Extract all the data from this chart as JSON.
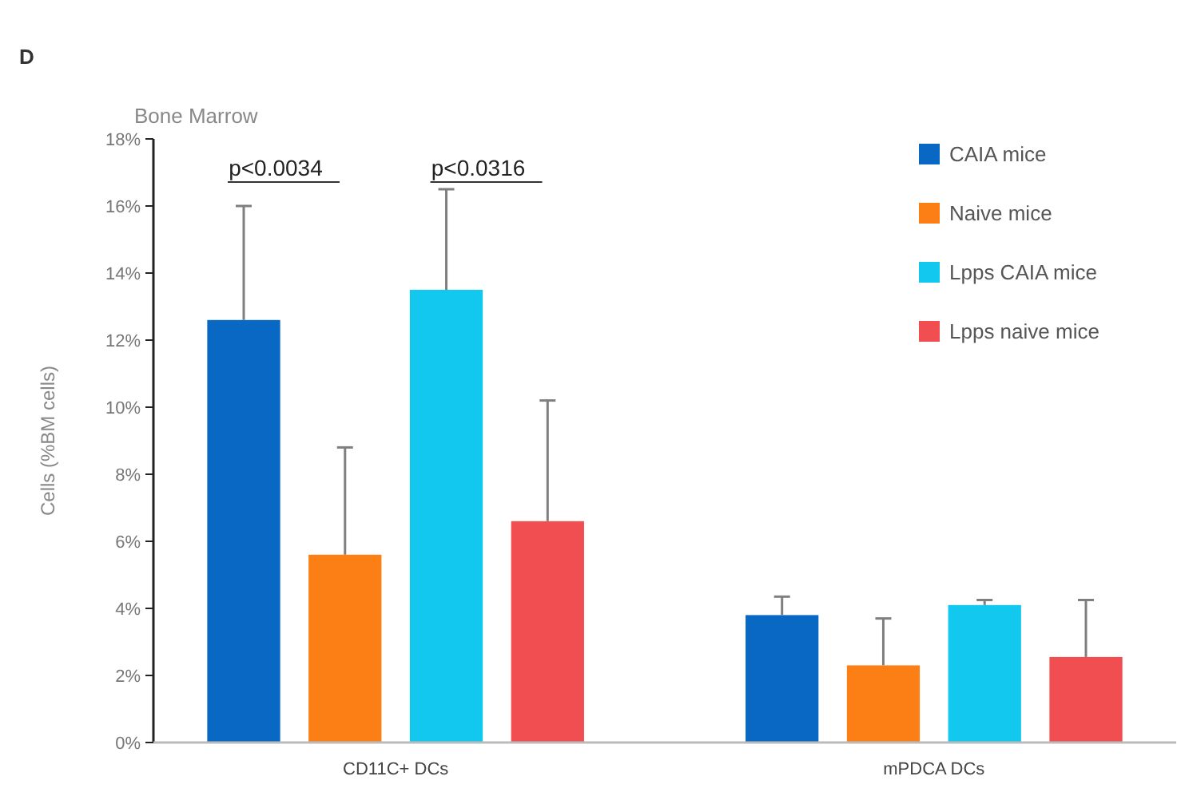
{
  "chart_data": {
    "type": "bar",
    "title": "Bone Marrow",
    "ylabel": "Cells (%BM cells)",
    "categories": [
      "CD11C+ DCs",
      "mPDCA DCs"
    ],
    "series": [
      {
        "name": "CAIA mice",
        "color": "#0868c4",
        "values": [
          12.6,
          3.8
        ],
        "errors": [
          [
            12.6,
            16.0
          ],
          [
            3.8,
            4.35
          ]
        ]
      },
      {
        "name": "Naive mice",
        "color": "#fc7f16",
        "values": [
          5.6,
          2.3
        ],
        "errors": [
          [
            5.6,
            8.8
          ],
          [
            2.3,
            3.7
          ]
        ]
      },
      {
        "name": "Lpps CAIA mice",
        "color": "#12c8ee",
        "values": [
          13.5,
          4.1
        ],
        "errors": [
          [
            13.5,
            16.5
          ],
          [
            4.1,
            4.25
          ]
        ]
      },
      {
        "name": "Lpps naive mice",
        "color": "#f04e50",
        "values": [
          6.6,
          2.55
        ],
        "errors": [
          [
            6.6,
            10.2
          ],
          [
            2.55,
            4.25
          ]
        ]
      }
    ],
    "ylim": [
      0,
      18
    ],
    "yticks": [
      {
        "value": 0,
        "label": "0%"
      },
      {
        "value": 2,
        "label": "2%"
      },
      {
        "value": 4,
        "label": "4%"
      },
      {
        "value": 6,
        "label": "6%"
      },
      {
        "value": 8,
        "label": "8%"
      },
      {
        "value": 10,
        "label": "10%"
      },
      {
        "value": 12,
        "label": "12%"
      },
      {
        "value": 14,
        "label": "14%"
      },
      {
        "value": 16,
        "label": "16%"
      },
      {
        "value": 18,
        "label": "18%"
      }
    ],
    "grid": false,
    "legend": "top right",
    "annotations": [
      "D",
      "p<0.0034",
      "p<0.0316"
    ]
  }
}
